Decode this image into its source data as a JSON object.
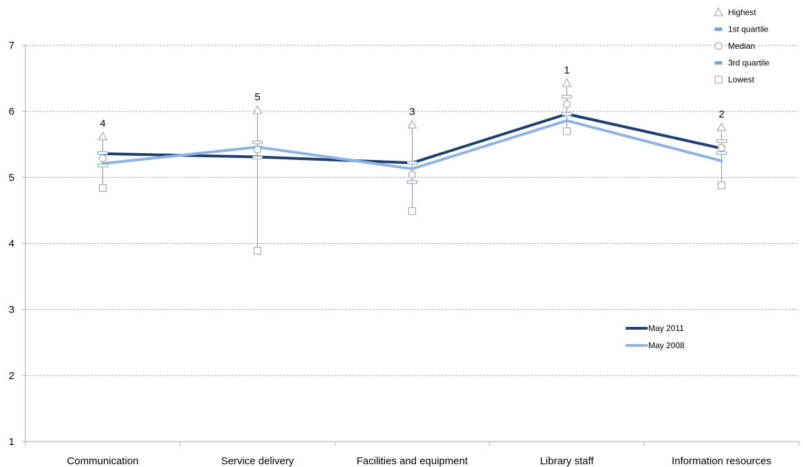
{
  "chart_data": {
    "type": "line",
    "title": "",
    "xlabel": "",
    "ylabel": "",
    "ylim": [
      1,
      7
    ],
    "yticks": [
      "1",
      "2",
      "3",
      "4",
      "5",
      "6",
      "7"
    ],
    "grid": true,
    "categories": [
      "Communication",
      "Service delivery",
      "Facilities and equipment",
      "Library staff",
      "Information resources"
    ],
    "series": [
      {
        "name": "May 2011",
        "color": "#1f3f6e",
        "values": [
          5.36,
          5.31,
          5.22,
          5.96,
          5.44
        ]
      },
      {
        "name": "May 2008",
        "color": "#8eb3e2",
        "values": [
          5.21,
          5.46,
          5.13,
          5.86,
          5.25
        ]
      }
    ],
    "distribution": {
      "highest": [
        5.62,
        6.02,
        5.8,
        6.43,
        5.76
      ],
      "q1": [
        5.37,
        5.53,
        5.22,
        6.22,
        5.55
      ],
      "median": [
        5.29,
        5.42,
        5.04,
        6.11,
        5.45
      ],
      "q3": [
        5.18,
        5.3,
        4.93,
        5.96,
        5.37
      ],
      "lowest": [
        4.84,
        3.89,
        4.49,
        5.7,
        4.88
      ]
    },
    "rank_labels": [
      "4",
      "5",
      "3",
      "1",
      "2"
    ],
    "distribution_legend": [
      "Highest",
      "1st quartile",
      "Median",
      "3rd quartile",
      "Lowest"
    ],
    "legend_position": "top-right (distribution markers); right-center (series)"
  }
}
